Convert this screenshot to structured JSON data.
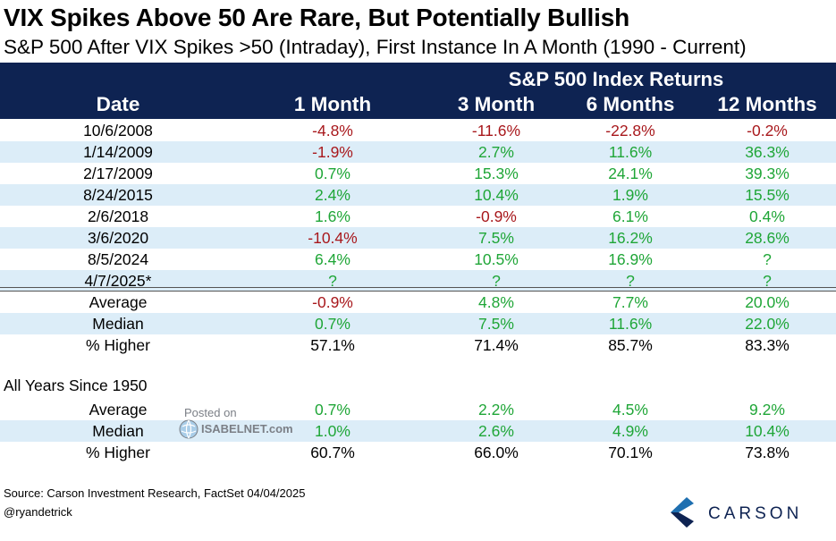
{
  "title": "VIX Spikes Above 50 Are Rare, But Potentially Bullish",
  "subtitle": "S&P 500 After VIX Spikes >50 (Intraday), First Instance In A Month (1990 - Current)",
  "header": {
    "group_label": "S&P 500 Index Returns",
    "date_label": "Date",
    "columns": [
      "1 Month",
      "3 Month",
      "6 Months",
      "12 Months"
    ]
  },
  "chart_data": {
    "type": "table",
    "columns": [
      "Date",
      "1 Month",
      "3 Month",
      "6 Months",
      "12 Months"
    ],
    "rows": [
      {
        "label": "10/6/2008",
        "values": [
          "-4.8%",
          "-11.6%",
          "-22.8%",
          "-0.2%"
        ]
      },
      {
        "label": "1/14/2009",
        "values": [
          "-1.9%",
          "2.7%",
          "11.6%",
          "36.3%"
        ]
      },
      {
        "label": "2/17/2009",
        "values": [
          "0.7%",
          "15.3%",
          "24.1%",
          "39.3%"
        ]
      },
      {
        "label": "8/24/2015",
        "values": [
          "2.4%",
          "10.4%",
          "1.9%",
          "15.5%"
        ]
      },
      {
        "label": "2/6/2018",
        "values": [
          "1.6%",
          "-0.9%",
          "6.1%",
          "0.4%"
        ]
      },
      {
        "label": "3/6/2020",
        "values": [
          "-10.4%",
          "7.5%",
          "16.2%",
          "28.6%"
        ]
      },
      {
        "label": "8/5/2024",
        "values": [
          "6.4%",
          "10.5%",
          "16.9%",
          "?"
        ]
      },
      {
        "label": "4/7/2025*",
        "values": [
          "?",
          "?",
          "?",
          "?"
        ]
      }
    ],
    "summary": [
      {
        "label": "Average",
        "values": [
          "-0.9%",
          "4.8%",
          "7.7%",
          "20.0%"
        ]
      },
      {
        "label": "Median",
        "values": [
          "0.7%",
          "7.5%",
          "11.6%",
          "22.0%"
        ]
      },
      {
        "label": "% Higher",
        "values": [
          "57.1%",
          "71.4%",
          "85.7%",
          "83.3%"
        ]
      }
    ],
    "all_years_label": "All Years Since 1950",
    "all_years": [
      {
        "label": "Average",
        "values": [
          "0.7%",
          "2.2%",
          "4.5%",
          "9.2%"
        ]
      },
      {
        "label": "Median",
        "values": [
          "1.0%",
          "2.6%",
          "4.9%",
          "10.4%"
        ]
      },
      {
        "label": "% Higher",
        "values": [
          "60.7%",
          "66.0%",
          "70.1%",
          "73.8%"
        ]
      }
    ]
  },
  "colors": {
    "header_bg": "#0e2352",
    "shade": "#dcedf8",
    "positive": "#1fa637",
    "negative": "#a8181c",
    "neutral": "#000000"
  },
  "watermark": {
    "posted": "Posted on",
    "site": "ISABELNET.com"
  },
  "footer": {
    "source": "Source: Carson Investment Research, FactSet 04/04/2025",
    "handle": "@ryandetrick"
  },
  "logo": {
    "name": "CARSON"
  }
}
